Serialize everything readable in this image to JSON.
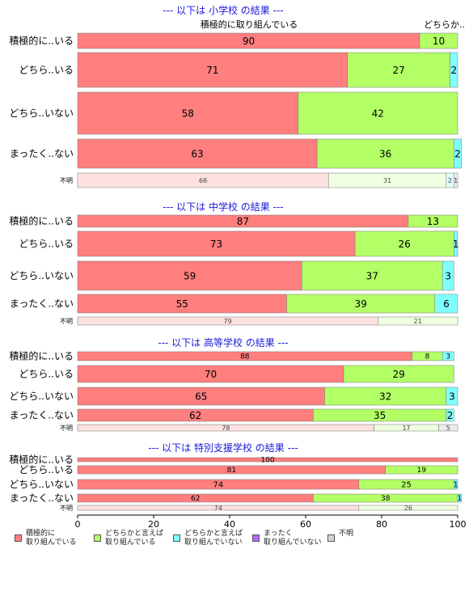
{
  "chart_data": {
    "type": "bar",
    "orientation": "horizontal",
    "stacked": true,
    "xlim": [
      0,
      100
    ],
    "x_ticks": [
      "0",
      "20",
      "40",
      "60",
      "80",
      "100"
    ],
    "grid": false,
    "legend_position": "bottom",
    "colors": [
      "#ff7f7f",
      "#b3ff66",
      "#80ffff",
      "#b266ff",
      "#d3d3d3"
    ],
    "top_label_first": "積極的に取り組んでいる",
    "top_label_second": "どちらか..",
    "series_names": [
      "積極的に\n取り組んでいる",
      "どちらかと言えば\n取り組んでいる",
      "どちらかと言えば\n取り組んでいない",
      "まったく\n取り組んでいない",
      "不明"
    ],
    "panels": [
      {
        "title": "--- 以下は 小学校 の結果 ---",
        "rows": [
          {
            "label": "積極的に..いる",
            "values": [
              90,
              10,
              0,
              0,
              0
            ],
            "small": false
          },
          {
            "label": "どちら..いる",
            "values": [
              71,
              27,
              2,
              0,
              0
            ],
            "small": false
          },
          {
            "label": "どちら..いない",
            "values": [
              58,
              42,
              0,
              0,
              0
            ],
            "small": false
          },
          {
            "label": "まったく..ない",
            "values": [
              63,
              36,
              2,
              0,
              0
            ],
            "small": false
          },
          {
            "label": "不明",
            "values": [
              66,
              31,
              2,
              0,
              1
            ],
            "small": true
          }
        ]
      },
      {
        "title": "--- 以下は 中学校 の結果 ---",
        "rows": [
          {
            "label": "積極的に..いる",
            "values": [
              87,
              13,
              0,
              0,
              0
            ],
            "small": false
          },
          {
            "label": "どちら..いる",
            "values": [
              73,
              26,
              1,
              0,
              0
            ],
            "small": false
          },
          {
            "label": "どちら..いない",
            "values": [
              59,
              37,
              3,
              0,
              0
            ],
            "small": false
          },
          {
            "label": "まったく..ない",
            "values": [
              55,
              39,
              6,
              0,
              0
            ],
            "small": false
          },
          {
            "label": "不明",
            "values": [
              79,
              21,
              0,
              0,
              0
            ],
            "small": true
          }
        ]
      },
      {
        "title": "--- 以下は 高等学校 の結果 ---",
        "rows": [
          {
            "label": "積極的に..いる",
            "values": [
              88,
              8,
              3,
              0,
              0
            ],
            "small": false
          },
          {
            "label": "どちら..いる",
            "values": [
              70,
              29,
              0,
              0,
              0
            ],
            "small": false
          },
          {
            "label": "どちら..いない",
            "values": [
              65,
              32,
              3,
              0,
              0
            ],
            "small": false
          },
          {
            "label": "まったく..ない",
            "values": [
              62,
              35,
              2,
              0,
              0
            ],
            "small": false
          },
          {
            "label": "不明",
            "values": [
              78,
              17,
              0,
              0,
              5
            ],
            "small": true
          }
        ]
      },
      {
        "title": "--- 以下は 特別支援学校 の結果 ---",
        "rows": [
          {
            "label": "積極的に..いる",
            "values": [
              100,
              0,
              0,
              0,
              0
            ],
            "small": false
          },
          {
            "label": "どちら..いる",
            "values": [
              81,
              19,
              0,
              0,
              0
            ],
            "small": false
          },
          {
            "label": "どちら..いない",
            "values": [
              74,
              25,
              1,
              0,
              0
            ],
            "small": false
          },
          {
            "label": "まったく..ない",
            "values": [
              62,
              38,
              1,
              0,
              0
            ],
            "small": false
          },
          {
            "label": "不明",
            "values": [
              74,
              26,
              0,
              0,
              0
            ],
            "small": true
          }
        ]
      }
    ]
  }
}
